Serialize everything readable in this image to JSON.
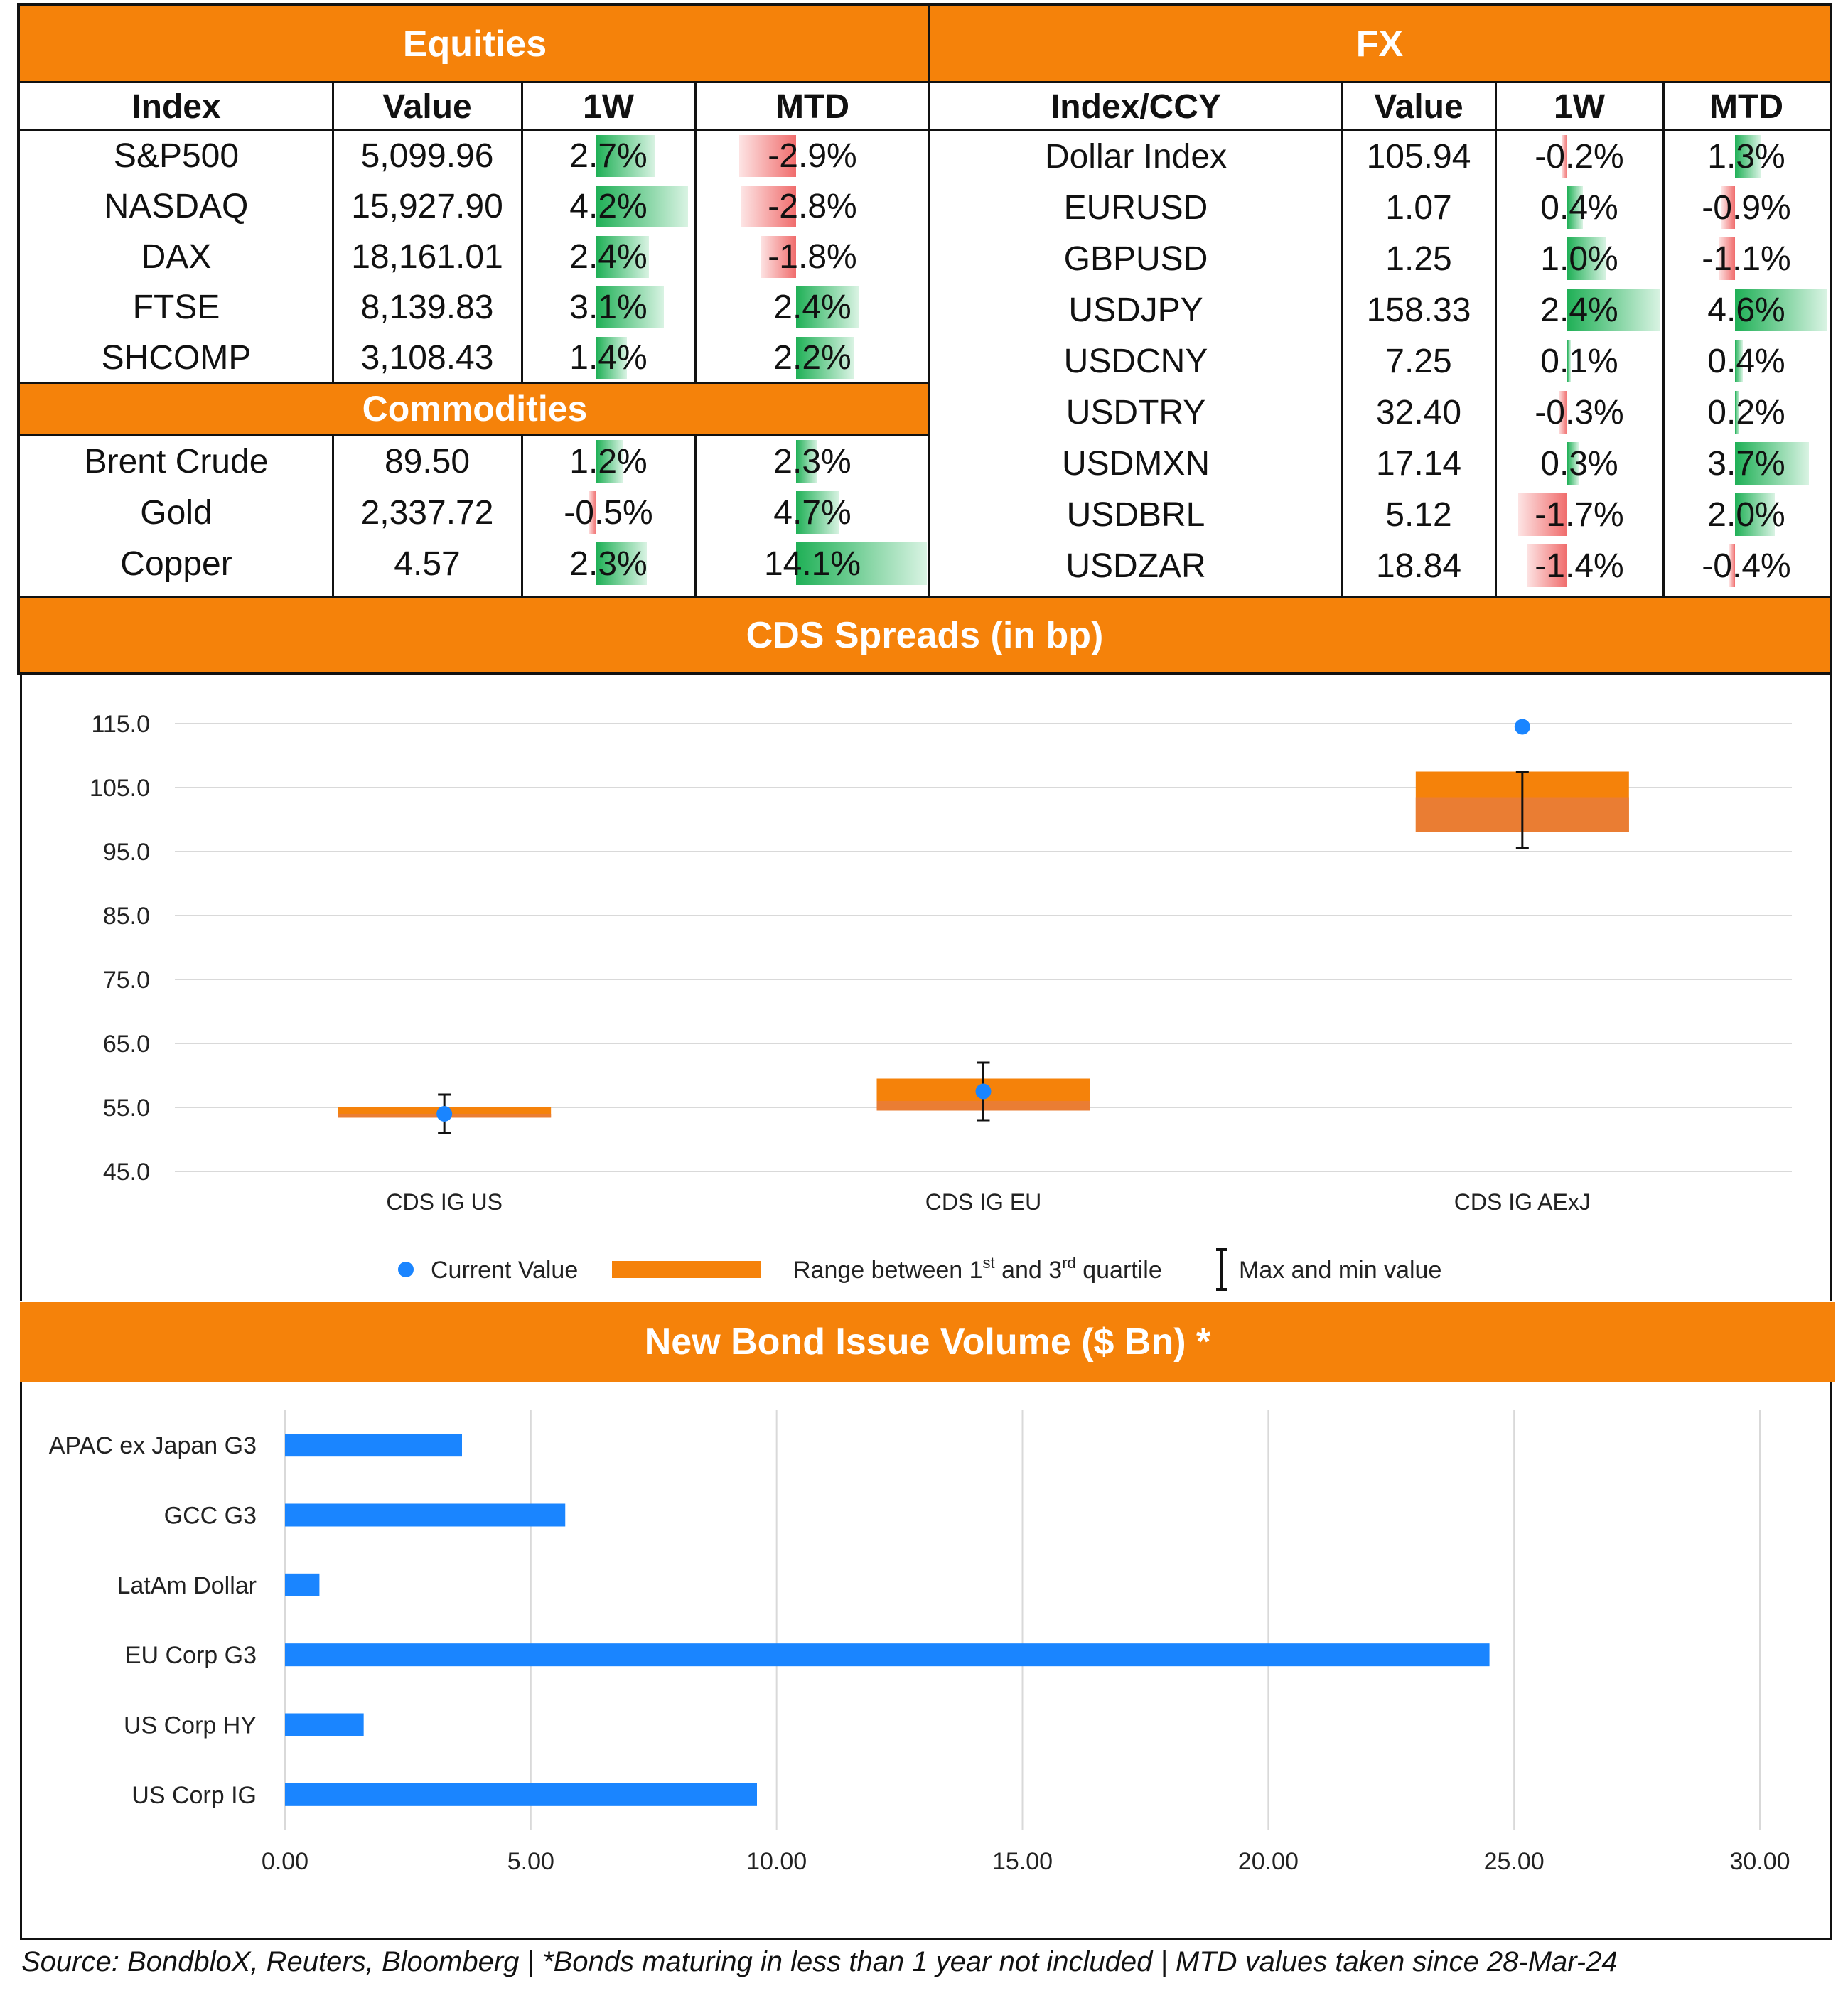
{
  "equities": {
    "title": "Equities",
    "columns": [
      "Index",
      "Value",
      "1W",
      "MTD"
    ],
    "rows": [
      {
        "name": "S&P500",
        "value": "5,099.96",
        "w1": "2.7%",
        "w1_val": 2.7,
        "mtd": "-2.9%",
        "mtd_val": -2.9
      },
      {
        "name": "NASDAQ",
        "value": "15,927.90",
        "w1": "4.2%",
        "w1_val": 4.2,
        "mtd": "-2.8%",
        "mtd_val": -2.8
      },
      {
        "name": "DAX",
        "value": "18,161.01",
        "w1": "2.4%",
        "w1_val": 2.4,
        "mtd": "-1.8%",
        "mtd_val": -1.8
      },
      {
        "name": "FTSE",
        "value": "8,139.83",
        "w1": "3.1%",
        "w1_val": 3.1,
        "mtd": "2.4%",
        "mtd_val": 2.4
      },
      {
        "name": "SHCOMP",
        "value": "3,108.43",
        "w1": "1.4%",
        "w1_val": 1.4,
        "mtd": "2.2%",
        "mtd_val": 2.2
      }
    ]
  },
  "commodities": {
    "title": "Commodities",
    "rows": [
      {
        "name": "Brent Crude",
        "value": "89.50",
        "w1": "1.2%",
        "w1_val": 1.2,
        "mtd": "2.3%",
        "mtd_val": 2.3
      },
      {
        "name": "Gold",
        "value": "2,337.72",
        "w1": "-0.5%",
        "w1_val": -0.5,
        "mtd": "4.7%",
        "mtd_val": 4.7
      },
      {
        "name": "Copper",
        "value": "4.57",
        "w1": "2.3%",
        "w1_val": 2.3,
        "mtd": "14.1%",
        "mtd_val": 14.1
      }
    ]
  },
  "fx": {
    "title": "FX",
    "columns": [
      "Index/CCY",
      "Value",
      "1W",
      "MTD"
    ],
    "rows": [
      {
        "name": "Dollar Index",
        "value": "105.94",
        "w1": "-0.2%",
        "w1_val": -0.2,
        "mtd": "1.3%",
        "mtd_val": 1.3
      },
      {
        "name": "EURUSD",
        "value": "1.07",
        "w1": "0.4%",
        "w1_val": 0.4,
        "mtd": "-0.9%",
        "mtd_val": -0.9
      },
      {
        "name": "GBPUSD",
        "value": "1.25",
        "w1": "1.0%",
        "w1_val": 1.0,
        "mtd": "-1.1%",
        "mtd_val": -1.1
      },
      {
        "name": "USDJPY",
        "value": "158.33",
        "w1": "2.4%",
        "w1_val": 2.4,
        "mtd": "4.6%",
        "mtd_val": 4.6
      },
      {
        "name": "USDCNY",
        "value": "7.25",
        "w1": "0.1%",
        "w1_val": 0.1,
        "mtd": "0.4%",
        "mtd_val": 0.4
      },
      {
        "name": "USDTRY",
        "value": "32.40",
        "w1": "-0.3%",
        "w1_val": -0.3,
        "mtd": "0.2%",
        "mtd_val": 0.2
      },
      {
        "name": "USDMXN",
        "value": "17.14",
        "w1": "0.3%",
        "w1_val": 0.3,
        "mtd": "3.7%",
        "mtd_val": 3.7
      },
      {
        "name": "USDBRL",
        "value": "5.12",
        "w1": "-1.7%",
        "w1_val": -1.7,
        "mtd": "2.0%",
        "mtd_val": 2.0
      },
      {
        "name": "USDZAR",
        "value": "18.84",
        "w1": "-1.4%",
        "w1_val": -1.4,
        "mtd": "-0.4%",
        "mtd_val": -0.4
      }
    ]
  },
  "colors": {
    "accent": "#f5820a",
    "bar_blue": "#1a85ff",
    "box_orange": "#f5820a",
    "box_mid": "#ea7d33",
    "point_blue": "#1a85ff"
  },
  "chart_data": [
    {
      "type": "box",
      "title": "CDS Spreads (in bp)",
      "categories": [
        "CDS IG US",
        "CDS IG EU",
        "CDS IG AExJ"
      ],
      "yticks": [
        "115.0",
        "105.0",
        "95.0",
        "85.0",
        "75.0",
        "65.0",
        "55.0",
        "45.0"
      ],
      "ylim": [
        45,
        115
      ],
      "series": [
        {
          "name": "CDS IG US",
          "current": 54.0,
          "q1": 53.4,
          "median": 54.0,
          "q3": 55.0,
          "min": 51.0,
          "max": 57.0
        },
        {
          "name": "CDS IG EU",
          "current": 57.5,
          "q1": 54.5,
          "median": 56.0,
          "q3": 59.5,
          "min": 53.0,
          "max": 62.0
        },
        {
          "name": "CDS IG AExJ",
          "current": 114.5,
          "q1": 98.0,
          "median": 103.5,
          "q3": 107.5,
          "min": 95.5,
          "max": 107.5
        }
      ],
      "legend": {
        "current": "Current Value",
        "range_pre": "Range between 1",
        "range_sup1": "st",
        "range_mid": " and 3",
        "range_sup2": "rd",
        "range_post": " quartile",
        "minmax": "Max and min value"
      }
    },
    {
      "type": "bar",
      "orientation": "horizontal",
      "title": "New Bond Issue Volume ($ Bn) *",
      "categories": [
        "APAC ex Japan G3",
        "GCC G3",
        "LatAm Dollar",
        "EU Corp G3",
        "US Corp HY",
        "US Corp IG"
      ],
      "values": [
        3.6,
        5.7,
        0.7,
        24.5,
        1.6,
        9.6
      ],
      "xticks": [
        "0.00",
        "5.00",
        "10.00",
        "15.00",
        "20.00",
        "25.00",
        "30.00"
      ],
      "xlim": [
        0,
        30
      ]
    }
  ],
  "footer": "Source: BondbloX, Reuters, Bloomberg | *Bonds maturing in less than 1 year not included | MTD values taken since 28-Mar-24"
}
